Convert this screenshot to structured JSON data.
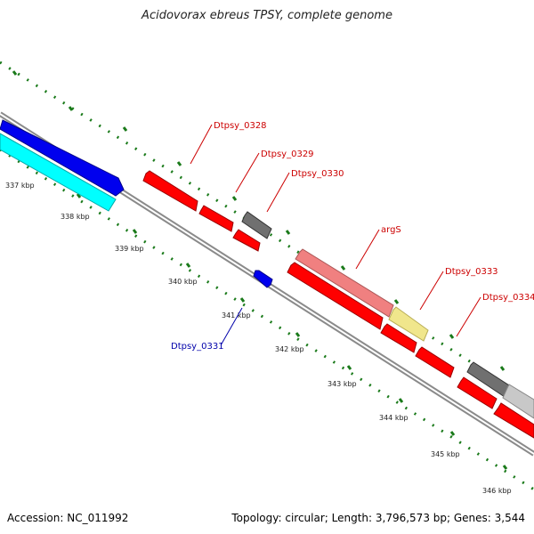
{
  "title": "Acidovorax ebreus TPSY, complete genome",
  "footer": {
    "accession_text": "Accession: NC_011992",
    "summary_text": "Topology: circular; Length: 3,796,573 bp; Genes: 3,544"
  },
  "colors": {
    "backbone": "#8a8a8a",
    "dotted_track": "#1a7a1a",
    "gene_red": "#ff0000",
    "gene_blue": "#0000ee",
    "gene_cyan": "#00ffff",
    "gene_gray": "#707070",
    "gene_pink": "#f08080",
    "gene_yellow": "#f0e68c",
    "gene_lightgray": "#c8c8c8",
    "label_red": "#cc0000",
    "label_blue": "#0000aa"
  },
  "ticks": [
    {
      "label": "337 kbp"
    },
    {
      "label": "338 kbp"
    },
    {
      "label": "339 kbp"
    },
    {
      "label": "340 kbp"
    },
    {
      "label": "341 kbp"
    },
    {
      "label": "342 kbp"
    },
    {
      "label": "343 kbp"
    },
    {
      "label": "344 kbp"
    },
    {
      "label": "345 kbp"
    },
    {
      "label": "346 kbp"
    }
  ],
  "gene_labels": [
    {
      "name": "Dtpsy_0328",
      "color": "red"
    },
    {
      "name": "Dtpsy_0329",
      "color": "red"
    },
    {
      "name": "Dtpsy_0330",
      "color": "red"
    },
    {
      "name": "argS",
      "color": "red"
    },
    {
      "name": "Dtpsy_0333",
      "color": "red"
    },
    {
      "name": "Dtpsy_0334",
      "color": "red"
    },
    {
      "name": "Dtpsy_0331",
      "color": "blue"
    }
  ]
}
